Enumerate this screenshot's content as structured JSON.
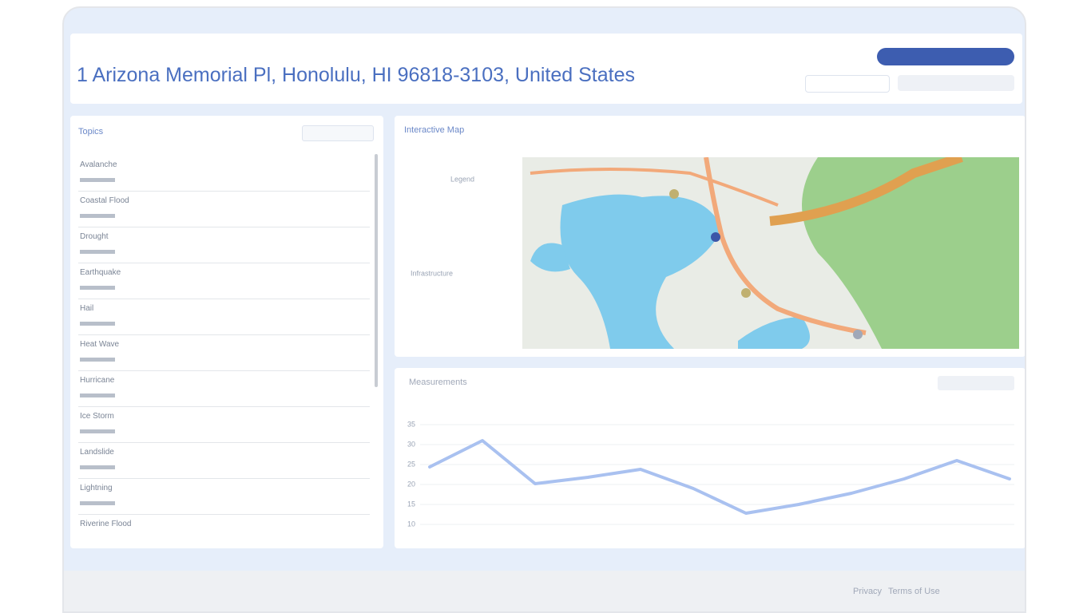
{
  "header": {
    "title": "1 Arizona Memorial Pl, Honolulu, HI 96818-3103, United States"
  },
  "topics": {
    "title": "Topics",
    "items": [
      "Avalanche",
      "Coastal Flood",
      "Drought",
      "Earthquake",
      "Hail",
      "Heat Wave",
      "Hurricane",
      "Ice Storm",
      "Landslide",
      "Lightning",
      "Riverine Flood"
    ]
  },
  "map": {
    "title": "Interactive Map",
    "legend_title": "Legend",
    "legend_group": "Infrastructure"
  },
  "measurements": {
    "title": "Measurements"
  },
  "footer": {
    "links": [
      "Privacy",
      "Terms of Use"
    ]
  },
  "chart_data": {
    "type": "line",
    "categories": [
      null,
      null,
      null,
      null,
      null,
      null,
      null,
      null,
      null,
      null,
      null,
      null
    ],
    "series": [
      {
        "color": "#a9c1f0",
        "values": [
          24.4,
          31,
          20.2,
          21.8,
          23.8,
          19,
          12.8,
          15,
          17.8,
          21.4,
          26,
          21.4
        ]
      }
    ],
    "ylim": [
      10,
      35
    ],
    "yticks": [
      10,
      15,
      20,
      25,
      30,
      35
    ],
    "grid": true
  }
}
